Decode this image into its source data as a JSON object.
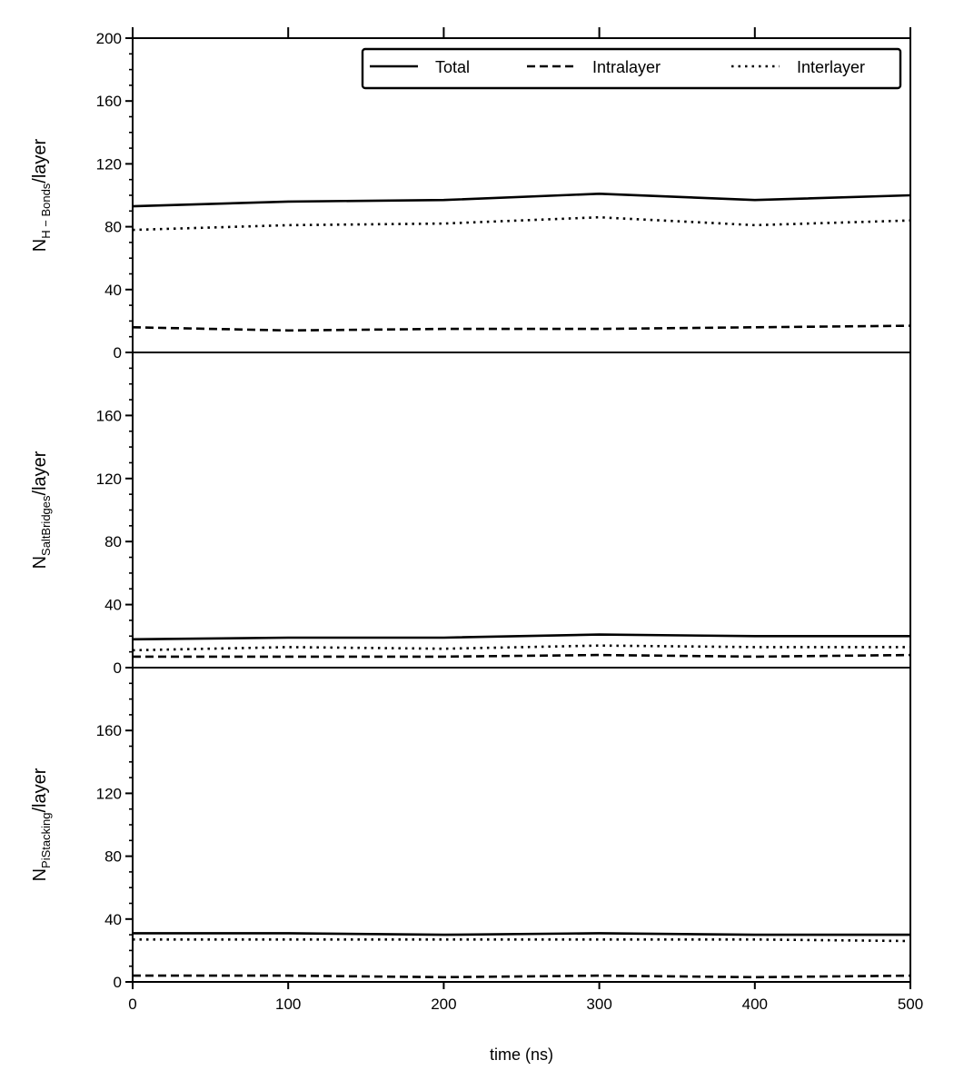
{
  "chart_data": {
    "type": "line",
    "x": [
      0,
      100,
      200,
      300,
      400,
      500
    ],
    "xlabel": "time (ns)",
    "xlim": [
      0,
      500
    ],
    "xticks": [
      0,
      100,
      200,
      300,
      400,
      500
    ],
    "grid": false,
    "legend": {
      "placement": "top-right",
      "entries": [
        {
          "label": "Total",
          "style": "solid"
        },
        {
          "label": "Intralayer",
          "style": "dashed"
        },
        {
          "label": "Interlayer",
          "style": "dotted"
        }
      ]
    },
    "panels": [
      {
        "ylabel_main": "N",
        "ylabel_sub": "H − Bonds",
        "ylabel_tail": "/layer",
        "ylim": [
          0,
          200
        ],
        "yticks": [
          0,
          40,
          80,
          120,
          160,
          200
        ],
        "series": [
          {
            "name": "Total",
            "values": [
              93,
              96,
              97,
              101,
              97,
              100
            ]
          },
          {
            "name": "Intralayer",
            "values": [
              16,
              14,
              15,
              15,
              16,
              17
            ]
          },
          {
            "name": "Interlayer",
            "values": [
              78,
              81,
              82,
              86,
              81,
              84
            ]
          }
        ]
      },
      {
        "ylabel_main": "N",
        "ylabel_sub": "SaltBridges",
        "ylabel_tail": "/layer",
        "ylim": [
          0,
          200
        ],
        "yticks": [
          0,
          40,
          80,
          120,
          160
        ],
        "series": [
          {
            "name": "Total",
            "values": [
              18,
              19,
              19,
              21,
              20,
              20
            ]
          },
          {
            "name": "Intralayer",
            "values": [
              7,
              7,
              7,
              8,
              7,
              8
            ]
          },
          {
            "name": "Interlayer",
            "values": [
              11,
              13,
              12,
              14,
              13,
              13
            ]
          }
        ]
      },
      {
        "ylabel_main": "N",
        "ylabel_sub": "PiStacking",
        "ylabel_tail": "/layer",
        "ylim": [
          0,
          200
        ],
        "yticks": [
          0,
          40,
          80,
          120,
          160
        ],
        "series": [
          {
            "name": "Total",
            "values": [
              31,
              31,
              30,
              31,
              30,
              30
            ]
          },
          {
            "name": "Intralayer",
            "values": [
              4,
              4,
              3,
              4,
              3,
              4
            ]
          },
          {
            "name": "Interlayer",
            "values": [
              27,
              27,
              27,
              27,
              27,
              26
            ]
          }
        ]
      }
    ]
  }
}
